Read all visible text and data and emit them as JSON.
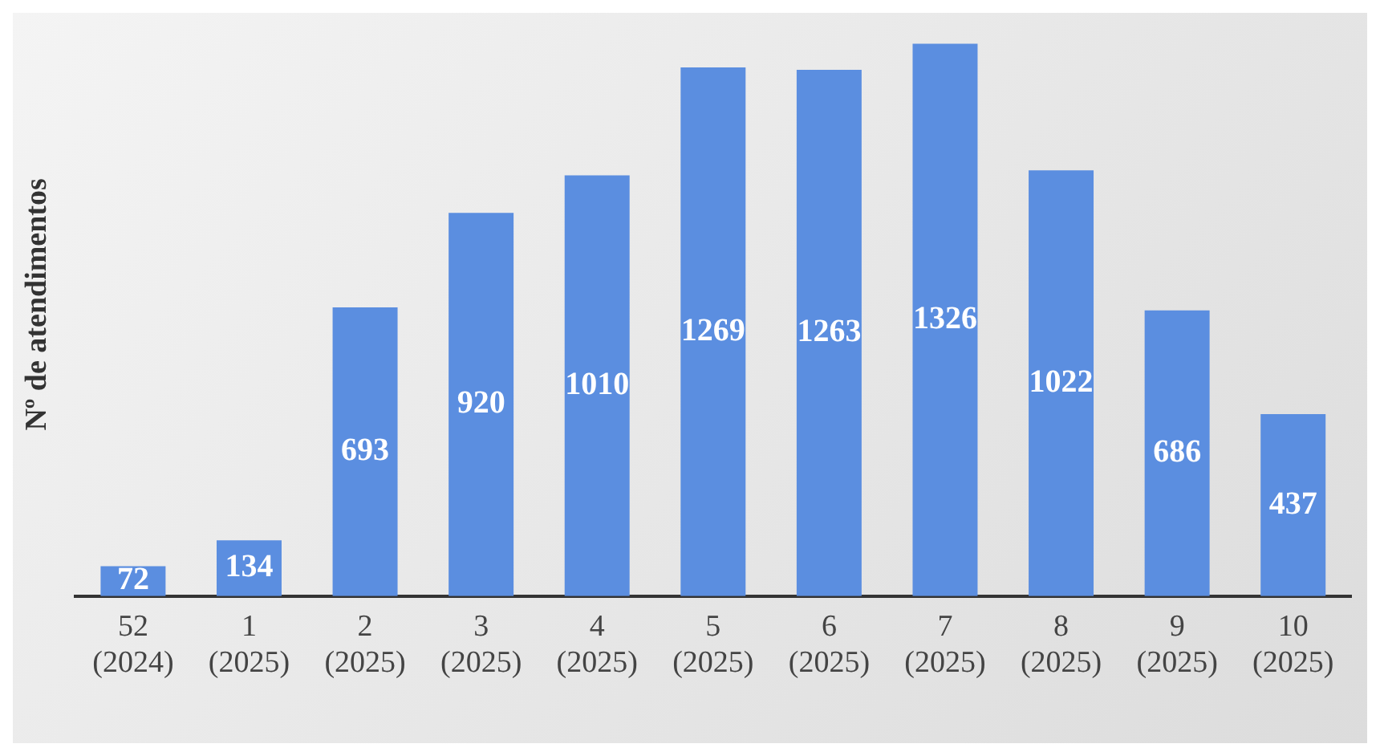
{
  "chart_data": {
    "type": "bar",
    "ylabel": "Nº de atendimentos",
    "categories": [
      "52 (2024)",
      "1 (2025)",
      "2 (2025)",
      "3 (2025)",
      "4 (2025)",
      "5 (2025)",
      "6 (2025)",
      "7 (2025)",
      "8 (2025)",
      "9 (2025)",
      "10 (2025)"
    ],
    "values": [
      72,
      134,
      693,
      920,
      1010,
      1269,
      1263,
      1326,
      1022,
      686,
      437
    ],
    "color": "#5b8ee0",
    "data_labels": true,
    "grid": false,
    "legend": false
  }
}
